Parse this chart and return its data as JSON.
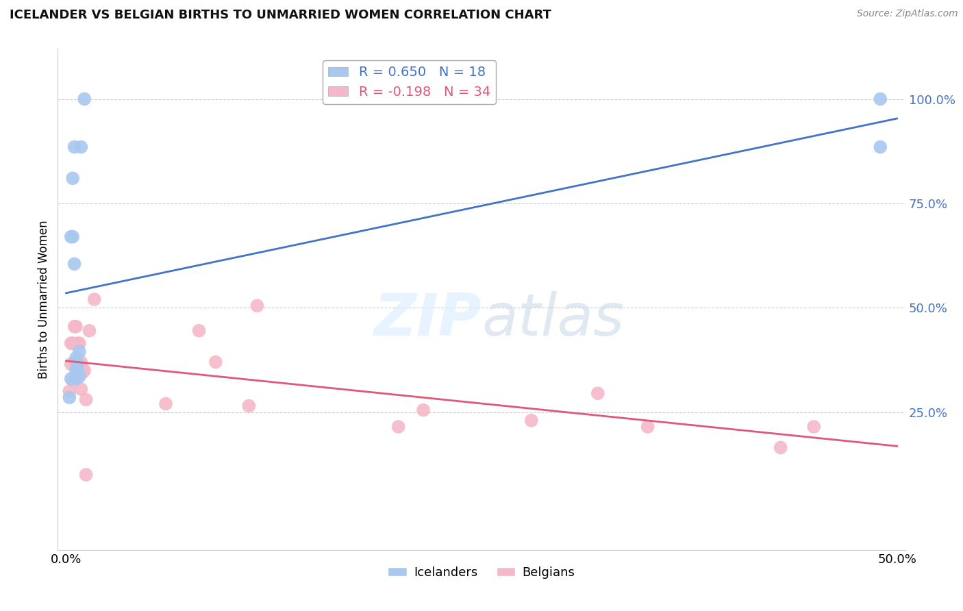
{
  "title": "ICELANDER VS BELGIAN BIRTHS TO UNMARRIED WOMEN CORRELATION CHART",
  "source": "Source: ZipAtlas.com",
  "ylabel": "Births to Unmarried Women",
  "xlim": [
    -0.005,
    0.505
  ],
  "ylim": [
    -0.08,
    1.12
  ],
  "yticks": [
    0.25,
    0.5,
    0.75,
    1.0
  ],
  "ytick_labels": [
    "25.0%",
    "50.0%",
    "75.0%",
    "100.0%"
  ],
  "xtick_positions": [
    0.0,
    0.1,
    0.2,
    0.3,
    0.4,
    0.5
  ],
  "xtick_labels": [
    "0.0%",
    "",
    "",
    "",
    "",
    "50.0%"
  ],
  "legend_icelander_r": "R = 0.650",
  "legend_icelander_n": "N = 18",
  "legend_belgian_r": "R = -0.198",
  "legend_belgian_n": "N = 34",
  "icelander_color": "#a8c8f0",
  "belgian_color": "#f5b8c8",
  "trendline_icelander_color": "#4472c4",
  "trendline_belgian_color": "#e05878",
  "watermark_color": "#ddeeff",
  "icelander_x": [
    0.002,
    0.004,
    0.003,
    0.004,
    0.005,
    0.005,
    0.006,
    0.006,
    0.006,
    0.007,
    0.007,
    0.008,
    0.008,
    0.009,
    0.011,
    0.49,
    0.49,
    0.003
  ],
  "icelander_y": [
    0.285,
    0.81,
    0.33,
    0.67,
    0.605,
    0.885,
    0.33,
    0.35,
    0.38,
    0.365,
    0.35,
    0.395,
    0.335,
    0.885,
    1.0,
    1.0,
    0.885,
    0.67
  ],
  "belgian_x": [
    0.002,
    0.003,
    0.003,
    0.004,
    0.004,
    0.005,
    0.005,
    0.006,
    0.006,
    0.007,
    0.007,
    0.008,
    0.008,
    0.009,
    0.009,
    0.01,
    0.01,
    0.011,
    0.012,
    0.014,
    0.017,
    0.06,
    0.08,
    0.09,
    0.11,
    0.115,
    0.2,
    0.215,
    0.28,
    0.32,
    0.35,
    0.43,
    0.45,
    0.012
  ],
  "belgian_y": [
    0.3,
    0.415,
    0.365,
    0.325,
    0.415,
    0.37,
    0.455,
    0.37,
    0.455,
    0.345,
    0.415,
    0.345,
    0.415,
    0.305,
    0.37,
    0.35,
    0.345,
    0.35,
    0.28,
    0.445,
    0.52,
    0.27,
    0.445,
    0.37,
    0.265,
    0.505,
    0.215,
    0.255,
    0.23,
    0.295,
    0.215,
    0.165,
    0.215,
    0.1
  ]
}
